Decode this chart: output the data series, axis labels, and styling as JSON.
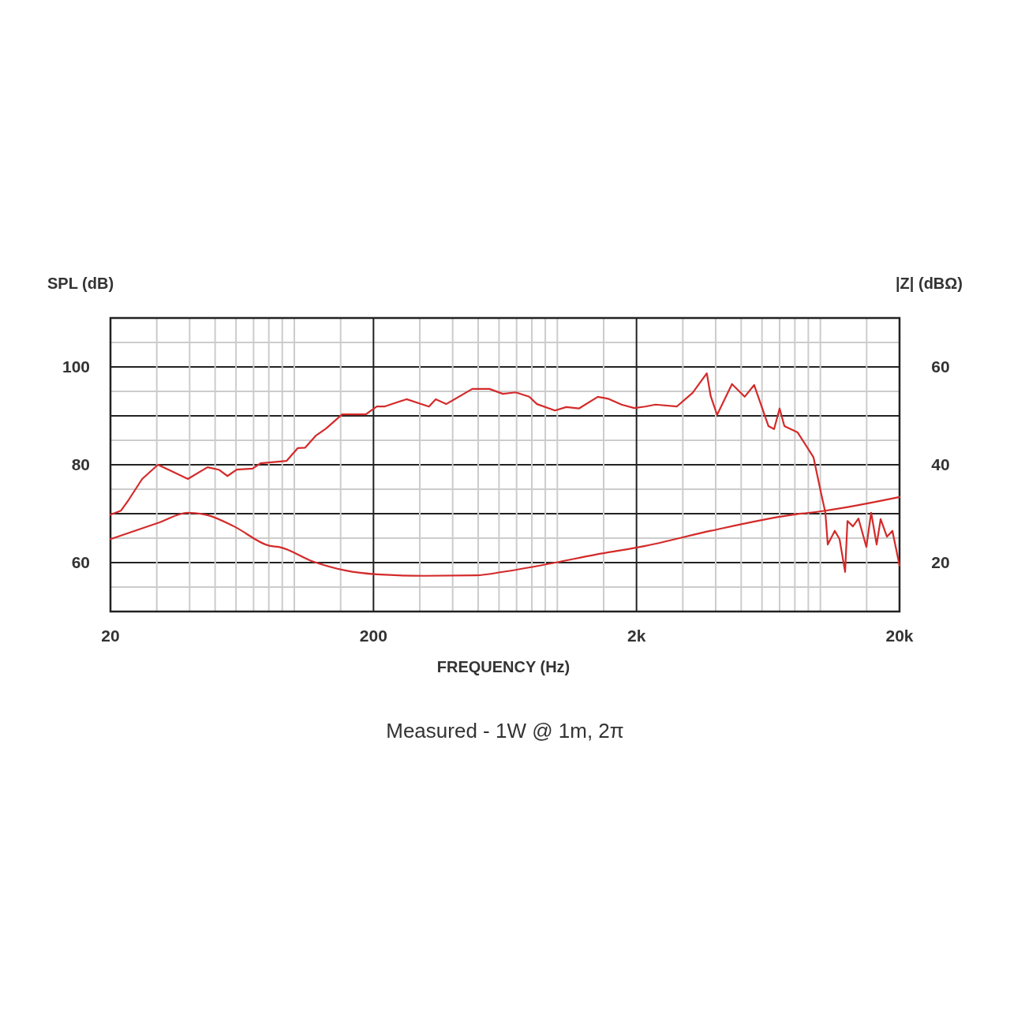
{
  "chart_data": {
    "type": "line",
    "xlabel": "FREQUENCY (Hz)",
    "ylabel": "SPL (dB)",
    "y2label": "|Z| (dBΩ)",
    "annotations": [
      "Measured - 1W @ 1m, 2π"
    ],
    "log": "x",
    "grid": true,
    "xlim": [
      20,
      20000
    ],
    "ylim": [
      50,
      110
    ],
    "y2lim": [
      10,
      70
    ],
    "xticks": [
      20,
      {
        "value": 30,
        "label": null
      },
      {
        "value": 40,
        "label": null
      },
      {
        "value": 50,
        "label": null
      },
      {
        "value": 60,
        "label": null
      },
      {
        "value": 70,
        "label": null
      },
      {
        "value": 80,
        "label": null
      },
      {
        "value": 90,
        "label": null
      },
      {
        "value": 100,
        "label": null
      },
      {
        "value": 150,
        "label": null
      },
      200,
      {
        "value": 300,
        "label": null
      },
      {
        "value": 400,
        "label": null
      },
      {
        "value": 500,
        "label": null
      },
      {
        "value": 600,
        "label": null
      },
      {
        "value": 700,
        "label": null
      },
      {
        "value": 800,
        "label": null
      },
      {
        "value": 900,
        "label": null
      },
      {
        "value": 1000,
        "label": null
      },
      {
        "value": 1500,
        "label": null
      },
      {
        "value": 2000,
        "label": "2k"
      },
      {
        "value": 3000,
        "label": null
      },
      {
        "value": 4000,
        "label": null
      },
      {
        "value": 5000,
        "label": null
      },
      {
        "value": 6000,
        "label": null
      },
      {
        "value": 7000,
        "label": null
      },
      {
        "value": 8000,
        "label": null
      },
      {
        "value": 9000,
        "label": null
      },
      {
        "value": 10000,
        "label": null
      },
      {
        "value": 15000,
        "label": null
      },
      {
        "value": 20000,
        "label": "20k"
      }
    ],
    "yticks": [
      {
        "value": 50,
        "label": null
      },
      {
        "value": 55,
        "label": null
      },
      60,
      {
        "value": 65,
        "label": null
      },
      {
        "value": 70,
        "label": null
      },
      {
        "value": 75,
        "label": null
      },
      80,
      {
        "value": 85,
        "label": null
      },
      {
        "value": 90,
        "label": null
      },
      {
        "value": 95,
        "label": null
      },
      100,
      {
        "value": 105,
        "label": null
      },
      {
        "value": 110,
        "label": null
      }
    ],
    "y2ticks": [
      20,
      40,
      60
    ],
    "series": [
      {
        "color": "#d42a2a",
        "x": [
          20,
          21.9,
          23.5,
          26.4,
          30.3,
          34.1,
          39.4,
          46.8,
          51.6,
          55.7,
          60.4,
          69.4,
          74.4,
          93.5,
          103,
          110,
          121,
          132,
          152,
          187,
          206,
          220,
          267,
          325,
          345,
          378,
          475,
          552,
          621,
          695,
          782,
          837,
          980,
          1081,
          1208,
          1426,
          1560,
          1754,
          1959,
          2159,
          2362,
          2845,
          3268,
          3700,
          3830,
          4050,
          4614,
          5154,
          5601,
          6350,
          6670,
          7000,
          7300,
          8200,
          9420,
          10090,
          10450,
          10670,
          11350,
          11830,
          12420,
          12680,
          13300,
          13960,
          14960,
          15600,
          16370,
          16950,
          17910,
          18790,
          20000
        ],
        "values": [
          69.8,
          70.6,
          72.9,
          77.1,
          80.0,
          78.7,
          77.1,
          79.5,
          79.0,
          77.7,
          79.0,
          79.2,
          80.3,
          80.8,
          83.4,
          83.5,
          86.0,
          87.4,
          90.3,
          90.3,
          91.9,
          91.9,
          93.4,
          91.9,
          93.4,
          92.4,
          95.5,
          95.5,
          94.5,
          94.8,
          93.9,
          92.4,
          91.1,
          91.8,
          91.5,
          93.9,
          93.5,
          92.3,
          91.6,
          91.9,
          92.3,
          91.9,
          94.7,
          98.7,
          94.0,
          90.2,
          96.5,
          93.9,
          96.3,
          87.9,
          87.3,
          91.5,
          87.9,
          86.6,
          81.5,
          73.9,
          70.2,
          63.7,
          66.5,
          64.8,
          58.1,
          68.5,
          67.4,
          69.0,
          63.2,
          70.2,
          63.7,
          68.9,
          65.3,
          66.5,
          59.4
        ]
      },
      {
        "color": "#d42a2a",
        "axis": "y2",
        "x": [
          20,
          30.3,
          39.4,
          46.8,
          59,
          80.9,
          87.3,
          118,
          156,
          206,
          311,
          491,
          621,
          980,
          1387,
          2159,
          3830,
          7650,
          10450,
          20000
        ],
        "values": [
          24.8,
          28.1,
          30.2,
          29.7,
          27.4,
          23.4,
          23.2,
          20.2,
          18.4,
          17.6,
          17.3,
          17.4,
          18.1,
          20.0,
          21.6,
          23.4,
          26.5,
          29.7,
          30.6,
          33.4
        ]
      }
    ]
  }
}
